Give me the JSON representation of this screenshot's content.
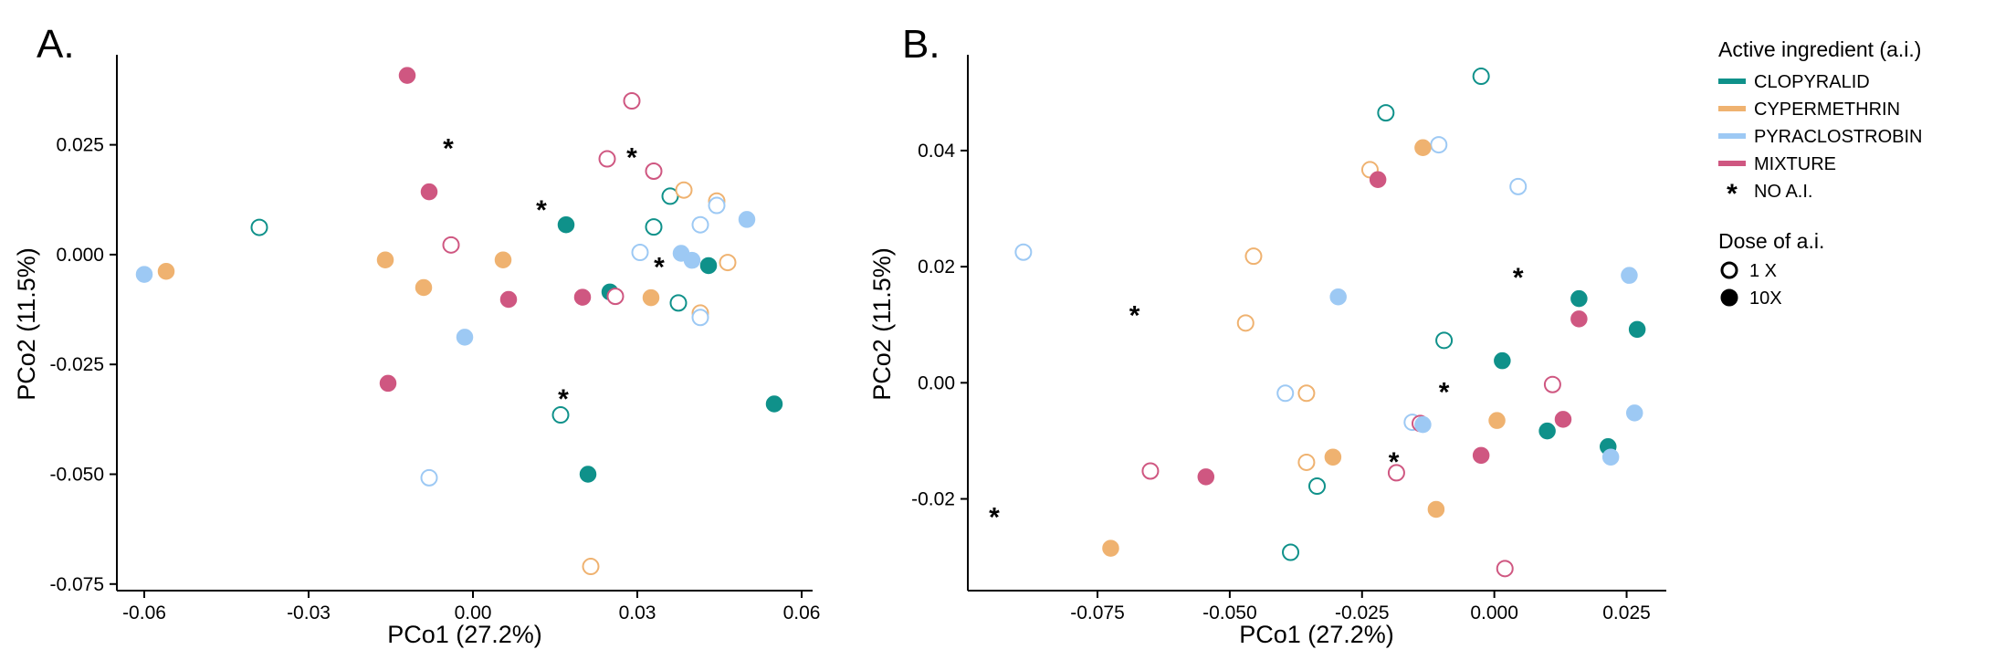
{
  "colors": {
    "CLOPYRALID": "#0f918a",
    "CYPERMETHRIN": "#efb270",
    "PYRACLOSTROBIN": "#9dc9f4",
    "MIXTURE": "#cf5781",
    "axis": "#000000"
  },
  "legend": {
    "ai_title": "Active ingredient (a.i.)",
    "ai_items": [
      {
        "key": "CLOPYRALID",
        "label": "CLOPYRALID"
      },
      {
        "key": "CYPERMETHRIN",
        "label": "CYPERMETHRIN"
      },
      {
        "key": "PYRACLOSTROBIN",
        "label": "PYRACLOSTROBIN"
      },
      {
        "key": "MIXTURE",
        "label": "MIXTURE"
      },
      {
        "key": "NONE",
        "label": "NO A.I.",
        "symbol": "*"
      }
    ],
    "dose_title": "Dose of a.i.",
    "dose_items": [
      {
        "key": "1X",
        "label": "1 X",
        "filled": false
      },
      {
        "key": "10X",
        "label": "10X",
        "filled": true
      }
    ]
  },
  "chart_data": [
    {
      "panel": "A.",
      "type": "scatter",
      "xlabel": "PCo1 (27.2%)",
      "ylabel": "PCo2 (11.5%)",
      "xlim": [
        -0.065,
        0.062
      ],
      "ylim": [
        -0.0765,
        0.0455
      ],
      "xticks": [
        {
          "value": -0.06,
          "label": "-0.06"
        },
        {
          "value": -0.03,
          "label": "-0.03"
        },
        {
          "value": 0.0,
          "label": "0.00"
        },
        {
          "value": 0.03,
          "label": "0.03"
        },
        {
          "value": 0.06,
          "label": "0.06"
        }
      ],
      "yticks": [
        {
          "value": 0.025,
          "label": "0.025"
        },
        {
          "value": 0.0,
          "label": "0.000"
        },
        {
          "value": -0.025,
          "label": "-0.025"
        },
        {
          "value": -0.05,
          "label": "-0.050"
        },
        {
          "value": -0.075,
          "label": "-0.075"
        }
      ],
      "points": [
        {
          "x": -0.06,
          "y": -0.0045,
          "g": "PYRACLOSTROBIN",
          "f": true
        },
        {
          "x": -0.056,
          "y": -0.0038,
          "g": "CYPERMETHRIN",
          "f": true
        },
        {
          "x": -0.039,
          "y": 0.0062,
          "g": "CLOPYRALID",
          "f": false
        },
        {
          "x": -0.012,
          "y": 0.0408,
          "g": "MIXTURE",
          "f": true
        },
        {
          "x": -0.008,
          "y": 0.0143,
          "g": "MIXTURE",
          "f": true
        },
        {
          "x": -0.004,
          "y": 0.0022,
          "g": "MIXTURE",
          "f": false
        },
        {
          "x": -0.016,
          "y": -0.0012,
          "g": "CYPERMETHRIN",
          "f": true
        },
        {
          "x": -0.009,
          "y": -0.0075,
          "g": "CYPERMETHRIN",
          "f": true
        },
        {
          "x": -0.0015,
          "y": -0.0188,
          "g": "PYRACLOSTROBIN",
          "f": true
        },
        {
          "x": -0.0155,
          "y": -0.0293,
          "g": "MIXTURE",
          "f": true
        },
        {
          "x": -0.008,
          "y": -0.0508,
          "g": "PYRACLOSTROBIN",
          "f": false
        },
        {
          "x": 0.0055,
          "y": -0.0012,
          "g": "CYPERMETHRIN",
          "f": true
        },
        {
          "x": 0.0065,
          "y": -0.0102,
          "g": "MIXTURE",
          "f": true
        },
        {
          "x": 0.017,
          "y": 0.0068,
          "g": "CLOPYRALID",
          "f": true
        },
        {
          "x": 0.02,
          "y": -0.0097,
          "g": "MIXTURE",
          "f": true
        },
        {
          "x": 0.016,
          "y": -0.0365,
          "g": "CLOPYRALID",
          "f": false
        },
        {
          "x": 0.021,
          "y": -0.05,
          "g": "CLOPYRALID",
          "f": true
        },
        {
          "x": 0.0215,
          "y": -0.071,
          "g": "CYPERMETHRIN",
          "f": false
        },
        {
          "x": 0.0245,
          "y": 0.0218,
          "g": "MIXTURE",
          "f": false
        },
        {
          "x": 0.029,
          "y": 0.035,
          "g": "MIXTURE",
          "f": false
        },
        {
          "x": 0.033,
          "y": 0.019,
          "g": "MIXTURE",
          "f": false
        },
        {
          "x": 0.036,
          "y": 0.0133,
          "g": "CLOPYRALID",
          "f": false
        },
        {
          "x": 0.0385,
          "y": 0.0147,
          "g": "CYPERMETHRIN",
          "f": false
        },
        {
          "x": 0.0445,
          "y": 0.0122,
          "g": "CYPERMETHRIN",
          "f": false
        },
        {
          "x": 0.0445,
          "y": 0.0112,
          "g": "PYRACLOSTROBIN",
          "f": false
        },
        {
          "x": 0.033,
          "y": 0.0063,
          "g": "CLOPYRALID",
          "f": false
        },
        {
          "x": 0.0415,
          "y": 0.0068,
          "g": "PYRACLOSTROBIN",
          "f": false
        },
        {
          "x": 0.05,
          "y": 0.008,
          "g": "PYRACLOSTROBIN",
          "f": true
        },
        {
          "x": 0.0305,
          "y": 0.0005,
          "g": "PYRACLOSTROBIN",
          "f": false
        },
        {
          "x": 0.038,
          "y": 0.0003,
          "g": "PYRACLOSTROBIN",
          "f": true
        },
        {
          "x": 0.04,
          "y": -0.0013,
          "g": "PYRACLOSTROBIN",
          "f": true
        },
        {
          "x": 0.043,
          "y": -0.0025,
          "g": "CLOPYRALID",
          "f": true
        },
        {
          "x": 0.0465,
          "y": -0.0018,
          "g": "CYPERMETHRIN",
          "f": false
        },
        {
          "x": 0.025,
          "y": -0.0085,
          "g": "CLOPYRALID",
          "f": true
        },
        {
          "x": 0.026,
          "y": -0.0095,
          "g": "MIXTURE",
          "f": false
        },
        {
          "x": 0.0325,
          "y": -0.0098,
          "g": "CYPERMETHRIN",
          "f": true
        },
        {
          "x": 0.0375,
          "y": -0.011,
          "g": "CLOPYRALID",
          "f": false
        },
        {
          "x": 0.0415,
          "y": -0.0133,
          "g": "CYPERMETHRIN",
          "f": false
        },
        {
          "x": 0.0415,
          "y": -0.0143,
          "g": "PYRACLOSTROBIN",
          "f": false
        },
        {
          "x": 0.055,
          "y": -0.034,
          "g": "CLOPYRALID",
          "f": true
        }
      ],
      "no_ai": [
        {
          "x": -0.0045,
          "y": 0.025
        },
        {
          "x": 0.0125,
          "y": 0.011
        },
        {
          "x": 0.029,
          "y": 0.023
        },
        {
          "x": 0.034,
          "y": -0.002
        },
        {
          "x": 0.0165,
          "y": -0.032
        }
      ]
    },
    {
      "panel": "B.",
      "type": "scatter",
      "xlabel": "PCo1 (27.2%)",
      "ylabel": "PCo2 (11.5%)",
      "xlim": [
        -0.0995,
        0.0325
      ],
      "ylim": [
        -0.0358,
        0.0565
      ],
      "xticks": [
        {
          "value": -0.075,
          "label": "-0.075"
        },
        {
          "value": -0.05,
          "label": "-0.050"
        },
        {
          "value": -0.025,
          "label": "-0.025"
        },
        {
          "value": 0.0,
          "label": "0.000"
        },
        {
          "value": 0.025,
          "label": "0.025"
        }
      ],
      "yticks": [
        {
          "value": 0.04,
          "label": "0.04"
        },
        {
          "value": 0.02,
          "label": "0.02"
        },
        {
          "value": 0.0,
          "label": "0.00"
        },
        {
          "value": -0.02,
          "label": "-0.02"
        }
      ],
      "points": [
        {
          "x": -0.0025,
          "y": 0.0528,
          "g": "CLOPYRALID",
          "f": false
        },
        {
          "x": -0.0205,
          "y": 0.0465,
          "g": "CLOPYRALID",
          "f": false
        },
        {
          "x": -0.0105,
          "y": 0.041,
          "g": "PYRACLOSTROBIN",
          "f": false
        },
        {
          "x": -0.0135,
          "y": 0.0405,
          "g": "CYPERMETHRIN",
          "f": true
        },
        {
          "x": -0.0235,
          "y": 0.0367,
          "g": "CYPERMETHRIN",
          "f": false
        },
        {
          "x": -0.022,
          "y": 0.035,
          "g": "MIXTURE",
          "f": true
        },
        {
          "x": 0.0045,
          "y": 0.0338,
          "g": "PYRACLOSTROBIN",
          "f": false
        },
        {
          "x": -0.089,
          "y": 0.0225,
          "g": "PYRACLOSTROBIN",
          "f": false
        },
        {
          "x": -0.0455,
          "y": 0.0218,
          "g": "CYPERMETHRIN",
          "f": false
        },
        {
          "x": 0.0255,
          "y": 0.0185,
          "g": "PYRACLOSTROBIN",
          "f": true
        },
        {
          "x": -0.0295,
          "y": 0.0148,
          "g": "PYRACLOSTROBIN",
          "f": true
        },
        {
          "x": 0.016,
          "y": 0.0145,
          "g": "CLOPYRALID",
          "f": true
        },
        {
          "x": 0.016,
          "y": 0.011,
          "g": "MIXTURE",
          "f": true
        },
        {
          "x": -0.047,
          "y": 0.0103,
          "g": "CYPERMETHRIN",
          "f": false
        },
        {
          "x": 0.027,
          "y": 0.0092,
          "g": "CLOPYRALID",
          "f": true
        },
        {
          "x": -0.0095,
          "y": 0.0073,
          "g": "CLOPYRALID",
          "f": false
        },
        {
          "x": 0.0015,
          "y": 0.0038,
          "g": "CLOPYRALID",
          "f": true
        },
        {
          "x": 0.011,
          "y": -0.0003,
          "g": "MIXTURE",
          "f": false
        },
        {
          "x": -0.0395,
          "y": -0.0018,
          "g": "PYRACLOSTROBIN",
          "f": false
        },
        {
          "x": -0.0355,
          "y": -0.0018,
          "g": "CYPERMETHRIN",
          "f": false
        },
        {
          "x": 0.0265,
          "y": -0.0052,
          "g": "PYRACLOSTROBIN",
          "f": true
        },
        {
          "x": 0.013,
          "y": -0.0063,
          "g": "MIXTURE",
          "f": true
        },
        {
          "x": 0.0005,
          "y": -0.0065,
          "g": "CYPERMETHRIN",
          "f": true
        },
        {
          "x": -0.0155,
          "y": -0.0068,
          "g": "PYRACLOSTROBIN",
          "f": false
        },
        {
          "x": -0.014,
          "y": -0.007,
          "g": "MIXTURE",
          "f": false
        },
        {
          "x": -0.0135,
          "y": -0.0072,
          "g": "PYRACLOSTROBIN",
          "f": true
        },
        {
          "x": 0.01,
          "y": -0.0083,
          "g": "CLOPYRALID",
          "f": true
        },
        {
          "x": 0.0215,
          "y": -0.011,
          "g": "CLOPYRALID",
          "f": true
        },
        {
          "x": 0.022,
          "y": -0.0128,
          "g": "PYRACLOSTROBIN",
          "f": true
        },
        {
          "x": -0.0305,
          "y": -0.0128,
          "g": "CYPERMETHRIN",
          "f": true
        },
        {
          "x": -0.0025,
          "y": -0.0125,
          "g": "MIXTURE",
          "f": true
        },
        {
          "x": -0.0355,
          "y": -0.0137,
          "g": "CYPERMETHRIN",
          "f": false
        },
        {
          "x": -0.065,
          "y": -0.0152,
          "g": "MIXTURE",
          "f": false
        },
        {
          "x": -0.0185,
          "y": -0.0155,
          "g": "MIXTURE",
          "f": false
        },
        {
          "x": -0.0545,
          "y": -0.0162,
          "g": "MIXTURE",
          "f": true
        },
        {
          "x": -0.0335,
          "y": -0.0178,
          "g": "CLOPYRALID",
          "f": false
        },
        {
          "x": -0.011,
          "y": -0.0218,
          "g": "CYPERMETHRIN",
          "f": true
        },
        {
          "x": -0.0725,
          "y": -0.0285,
          "g": "CYPERMETHRIN",
          "f": true
        },
        {
          "x": -0.0385,
          "y": -0.0292,
          "g": "CLOPYRALID",
          "f": false
        },
        {
          "x": 0.002,
          "y": -0.032,
          "g": "MIXTURE",
          "f": false
        }
      ],
      "no_ai": [
        {
          "x": -0.068,
          "y": 0.0122
        },
        {
          "x": 0.0045,
          "y": 0.0188
        },
        {
          "x": -0.0095,
          "y": -0.001
        },
        {
          "x": -0.019,
          "y": -0.013
        },
        {
          "x": -0.0945,
          "y": -0.0225
        }
      ]
    }
  ]
}
